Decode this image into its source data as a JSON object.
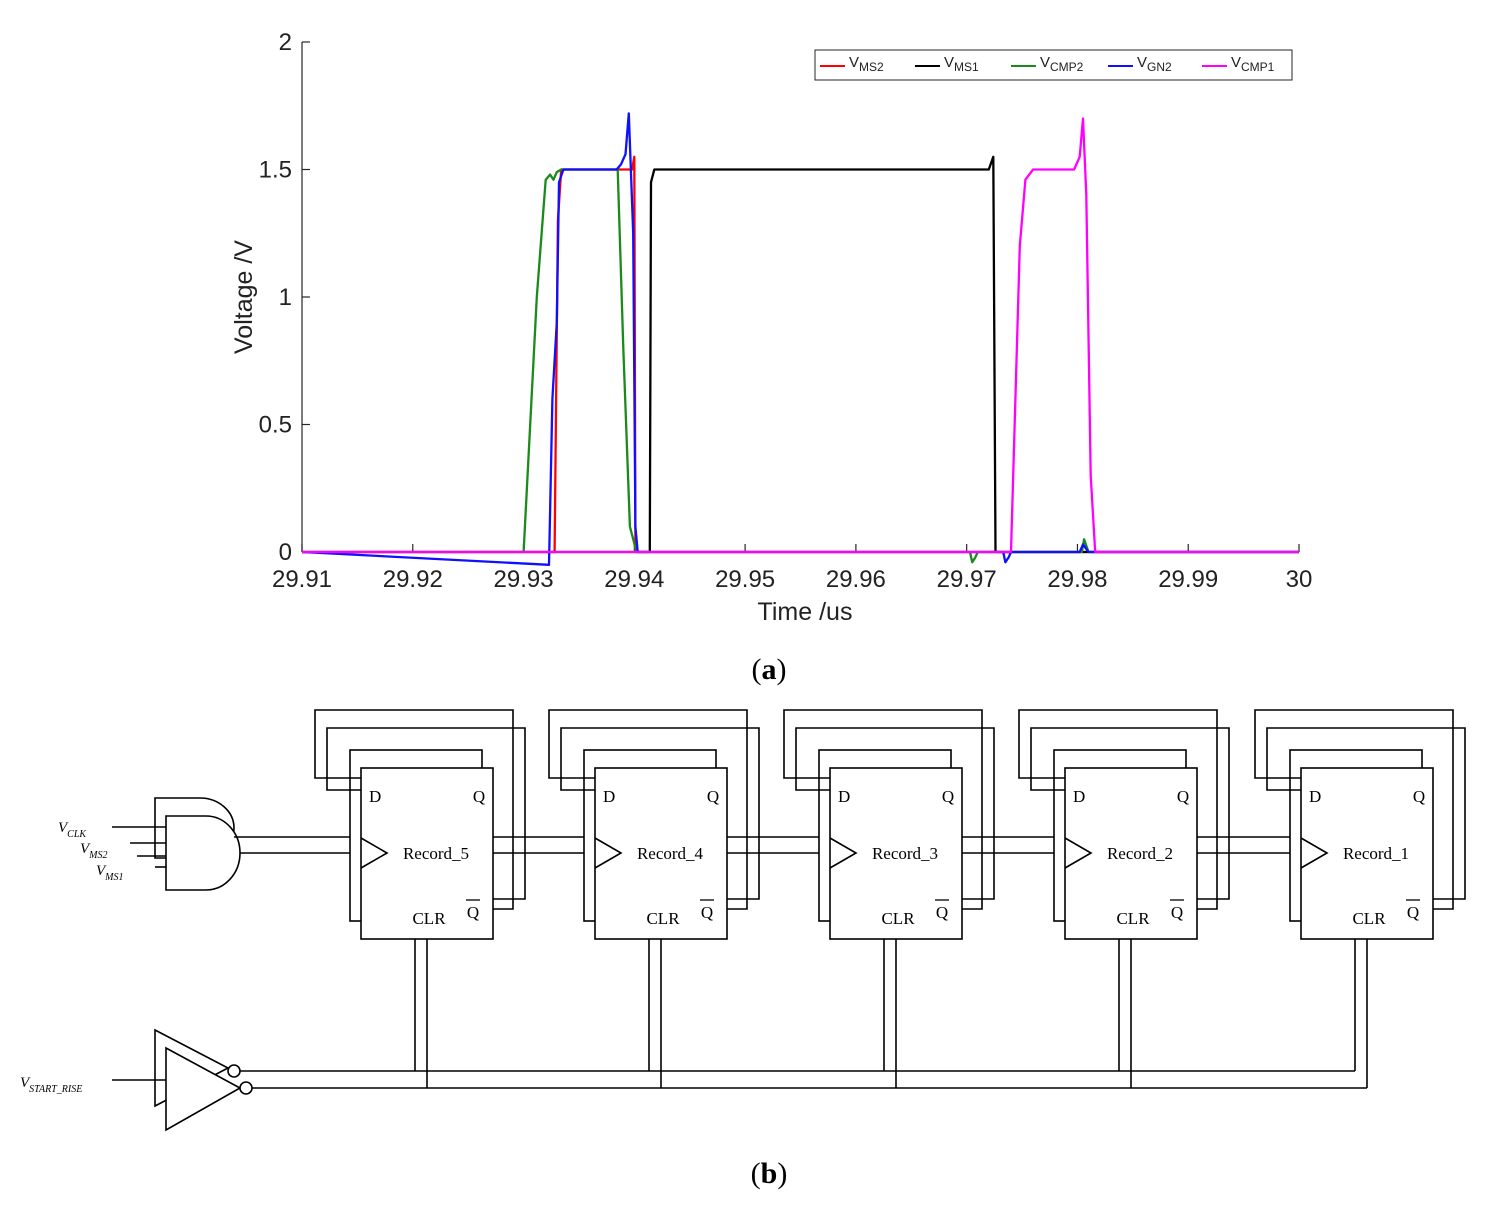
{
  "chart_data": {
    "type": "line",
    "xlabel": "Time /us",
    "ylabel": "Voltage /V",
    "xlim": [
      29.91,
      30.0
    ],
    "ylim": [
      0,
      2
    ],
    "xticks": [
      "29.91",
      "29.92",
      "29.93",
      "29.94",
      "29.95",
      "29.96",
      "29.97",
      "29.98",
      "29.99",
      "30"
    ],
    "yticks": [
      "0",
      "0.5",
      "1",
      "1.5",
      "2"
    ],
    "grid": false,
    "legend_position": "top-right",
    "series": [
      {
        "name": "V",
        "sub": "MS2",
        "color": "#ff0000",
        "x": [
          29.91,
          29.9328,
          29.9331,
          29.9334,
          29.9398,
          29.94,
          29.9401,
          30.0
        ],
        "y": [
          0,
          0,
          1.3,
          1.5,
          1.5,
          1.55,
          0,
          0
        ]
      },
      {
        "name": "V",
        "sub": "MS1",
        "color": "#000000",
        "x": [
          29.91,
          29.9414,
          29.9415,
          29.9418,
          29.972,
          29.9724,
          29.9726,
          30.0
        ],
        "y": [
          0,
          0,
          1.45,
          1.5,
          1.5,
          1.55,
          0,
          0
        ]
      },
      {
        "name": "V",
        "sub": "CMP2",
        "color": "#1a8a1a",
        "x": [
          29.91,
          29.93,
          29.9312,
          29.932,
          29.9324,
          29.9327,
          29.933,
          29.9334,
          29.9385,
          29.939,
          29.9396,
          29.9402,
          29.9703,
          29.9705,
          29.9708,
          29.971,
          29.9804,
          29.9806,
          29.981,
          30.0
        ],
        "y": [
          0,
          0,
          1.0,
          1.46,
          1.48,
          1.46,
          1.49,
          1.5,
          1.5,
          0.8,
          0.1,
          0,
          0,
          -0.04,
          -0.02,
          0,
          0,
          0.05,
          0,
          0
        ]
      },
      {
        "name": "V",
        "sub": "GN2",
        "color": "#1010ff",
        "x": [
          29.91,
          29.9323,
          29.9326,
          29.933,
          29.9332,
          29.9336,
          29.9384,
          29.9388,
          29.9392,
          29.9395,
          29.9399,
          29.9401,
          29.9403,
          29.9733,
          29.9735,
          29.9738,
          29.974,
          29.9802,
          29.9805,
          29.981,
          30.0
        ],
        "y": [
          0,
          -0.05,
          0.6,
          0.9,
          1.45,
          1.5,
          1.5,
          1.52,
          1.56,
          1.72,
          1.25,
          0.1,
          0,
          0,
          -0.04,
          -0.02,
          0,
          0,
          0.03,
          0,
          0
        ]
      },
      {
        "name": "V",
        "sub": "CMP1",
        "color": "#ff00ff",
        "x": [
          29.91,
          29.974,
          29.9748,
          29.9753,
          29.976,
          29.9797,
          29.9802,
          29.9805,
          29.9808,
          29.9812,
          29.9816,
          30.0
        ],
        "y": [
          0,
          0,
          1.2,
          1.46,
          1.5,
          1.5,
          1.55,
          1.7,
          1.4,
          0.3,
          0,
          0
        ]
      }
    ]
  },
  "captions": {
    "a": "a",
    "b": "b"
  },
  "circuit": {
    "flip_flops": [
      {
        "label": "Record_5",
        "d": "D",
        "q": "Q",
        "qbar": "Q",
        "clr": "CLR"
      },
      {
        "label": "Record_4",
        "d": "D",
        "q": "Q",
        "qbar": "Q",
        "clr": "CLR"
      },
      {
        "label": "Record_3",
        "d": "D",
        "q": "Q",
        "qbar": "Q",
        "clr": "CLR"
      },
      {
        "label": "Record_2",
        "d": "D",
        "q": "Q",
        "qbar": "Q",
        "clr": "CLR"
      },
      {
        "label": "Record_1",
        "d": "D",
        "q": "Q",
        "qbar": "Q",
        "clr": "CLR"
      }
    ],
    "inputs": [
      {
        "main": "V",
        "sub": "CLK"
      },
      {
        "main": "V",
        "sub": "MS2"
      },
      {
        "main": "V",
        "sub": "MS1"
      },
      {
        "main": "V",
        "sub": "START_RISE"
      }
    ]
  }
}
